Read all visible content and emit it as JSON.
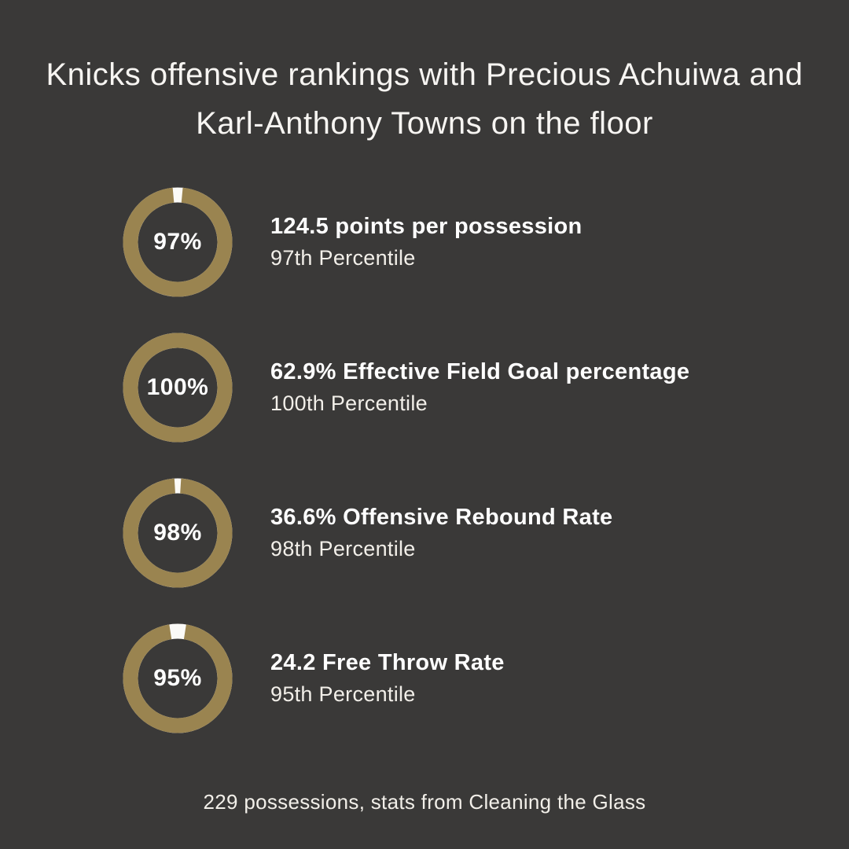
{
  "colors": {
    "background": "#3a3938",
    "ring": "#9a8450",
    "ring_gap": "#fbfaf7",
    "text": "#ffffff"
  },
  "title": {
    "bold": "Knicks offensive rankings",
    "regular": " with Precious Achuiwa and Karl-Anthony Towns on the floor"
  },
  "footer": "229 possessions, stats from Cleaning the Glass",
  "chart_data": [
    {
      "type": "donut",
      "value": 97,
      "max": 100,
      "center_label": "97%",
      "title": "124.5 points per possession",
      "subtitle": "97th Percentile"
    },
    {
      "type": "donut",
      "value": 100,
      "max": 100,
      "center_label": "100%",
      "title": "62.9% Effective Field Goal percentage",
      "subtitle": "100th Percentile"
    },
    {
      "type": "donut",
      "value": 98,
      "max": 100,
      "center_label": "98%",
      "title": "36.6% Offensive Rebound Rate",
      "subtitle": "98th Percentile"
    },
    {
      "type": "donut",
      "value": 95,
      "max": 100,
      "center_label": "95%",
      "title": "24.2 Free Throw Rate",
      "subtitle": "95th Percentile"
    }
  ]
}
